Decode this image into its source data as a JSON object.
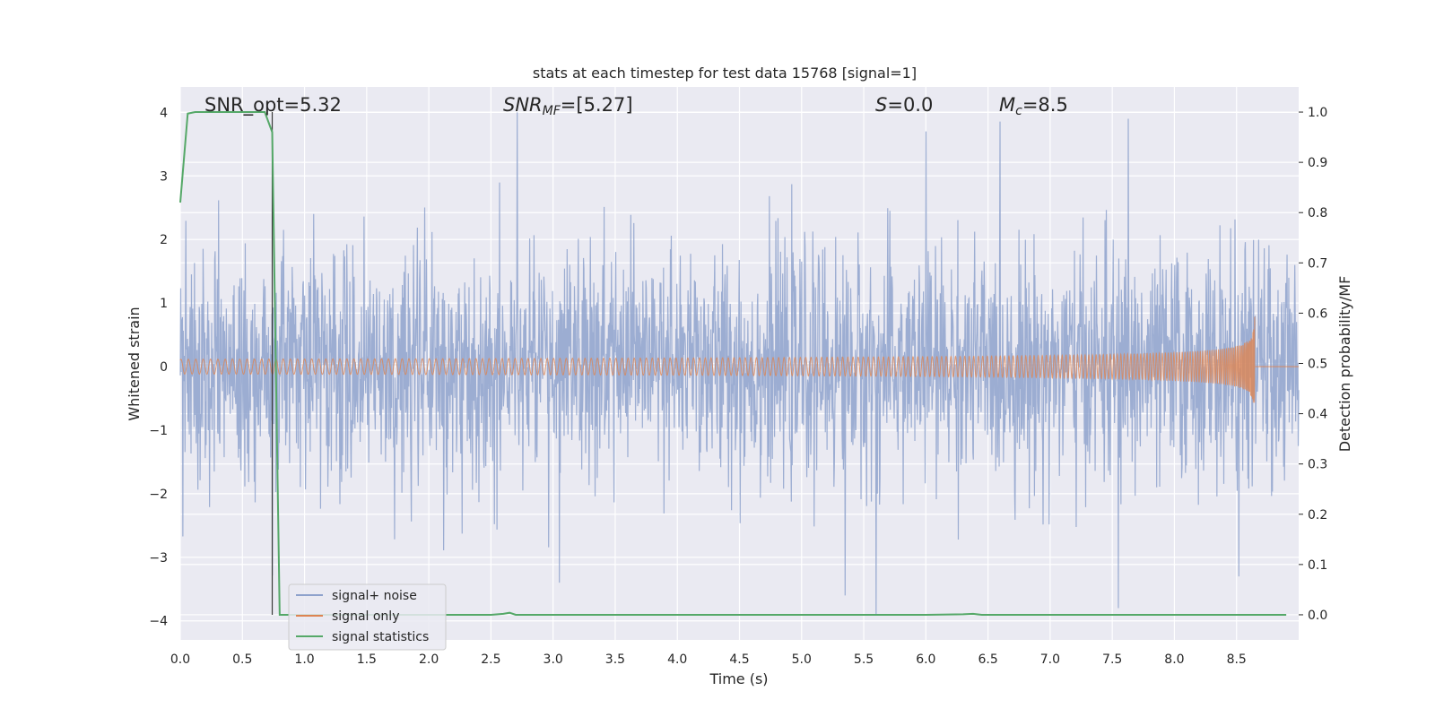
{
  "chart_data": {
    "type": "line",
    "title": "stats at each timestep for test data 15768 [signal=1]",
    "xlabel": "Time (s)",
    "ylabel": "Whitened strain",
    "y2label": "Detection probability/MF",
    "xlim": [
      0.0,
      9.0
    ],
    "ylim": [
      -4.3,
      4.4
    ],
    "y2lim": [
      -0.05,
      1.05
    ],
    "xticks": [
      "0.0",
      "0.5",
      "1.0",
      "1.5",
      "2.0",
      "2.5",
      "3.0",
      "3.5",
      "4.0",
      "4.5",
      "5.0",
      "5.5",
      "6.0",
      "6.5",
      "7.0",
      "7.5",
      "8.0",
      "8.5"
    ],
    "yticks": [
      "−4",
      "−3",
      "−2",
      "−1",
      "0",
      "1",
      "2",
      "3",
      "4"
    ],
    "y2ticks": [
      "0.0",
      "0.1",
      "0.2",
      "0.3",
      "0.4",
      "0.5",
      "0.6",
      "0.7",
      "0.8",
      "0.9",
      "1.0"
    ],
    "grid": true,
    "annotations": {
      "snr_opt": "SNR_opt=5.32",
      "snr_mf_base": "SNR",
      "snr_mf_sub": "MF",
      "snr_mf_value": "=[5.27]",
      "s_italic": "S",
      "s_value": "=0.0",
      "mc_base": "M",
      "mc_sub": "c",
      "mc_value": "=8.5"
    },
    "marker_line_x": 0.74,
    "legend_position": "lower-left",
    "series": [
      {
        "name": "signal+ noise",
        "color": "#8ea2cc",
        "kind": "noise",
        "x_range": [
          0.0,
          9.0
        ],
        "band_std": 0.9,
        "spikes": [
          [
            2.71,
            4.0
          ],
          [
            7.63,
            3.9
          ],
          [
            6.0,
            3.7
          ],
          [
            5.35,
            -3.6
          ],
          [
            5.6,
            -3.9
          ],
          [
            7.55,
            -3.8
          ],
          [
            3.05,
            -3.4
          ],
          [
            8.52,
            -3.3
          ]
        ]
      },
      {
        "name": "signal only",
        "color": "#dd8452",
        "kind": "chirp",
        "x_range": [
          0.0,
          8.65
        ],
        "peak_amplitude": 0.8,
        "merger_time": 8.65
      },
      {
        "name": "signal statistics",
        "color": "#55a868",
        "kind": "probability",
        "x": [
          0.0,
          0.06,
          0.12,
          0.2,
          0.3,
          0.4,
          0.5,
          0.6,
          0.68,
          0.74,
          0.8,
          0.9,
          1.0,
          1.5,
          2.0,
          2.5,
          2.6,
          2.65,
          2.7,
          3.0,
          4.0,
          5.0,
          6.0,
          6.3,
          6.38,
          6.45,
          7.0,
          8.0,
          8.9
        ],
        "y": [
          0.82,
          0.997,
          1.0,
          1.0,
          1.0,
          1.0,
          1.0,
          1.0,
          1.0,
          0.96,
          0.0,
          0.0,
          0.0,
          0.0,
          0.0,
          0.0,
          0.002,
          0.004,
          0.0,
          0.0,
          0.0,
          0.0,
          0.0,
          0.001,
          0.002,
          0.0,
          0.0,
          0.0,
          0.0
        ]
      }
    ]
  }
}
